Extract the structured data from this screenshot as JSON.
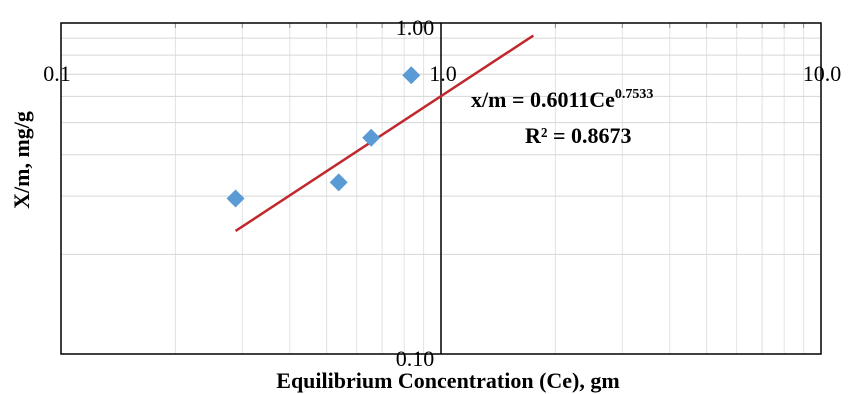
{
  "chart_data": {
    "type": "scatter",
    "xlabel": "Equilibrium Concentration (Ce), gm",
    "ylabel": "X/m, mg/g",
    "x_scale": "log",
    "y_scale": "log",
    "xlim": [
      0.1,
      10.0
    ],
    "ylim": [
      0.1,
      1.0
    ],
    "x_tick_labels": [
      "0.1",
      "1.0",
      "10.0"
    ],
    "y_tick_labels": [
      "0.10",
      "1.00"
    ],
    "grid": true,
    "series": [
      {
        "values": [
          {
            "x": 0.288,
            "y": 0.295
          },
          {
            "x": 0.538,
            "y": 0.33
          },
          {
            "x": 0.655,
            "y": 0.45
          },
          {
            "x": 0.835,
            "y": 0.695
          }
        ],
        "color": "#5b9bd5",
        "marker": "diamond"
      }
    ],
    "trendline": {
      "type": "power",
      "coefficient": 0.6011,
      "exponent": 0.7533,
      "x_range": [
        0.288,
        1.75
      ],
      "color": "#c0282d",
      "equation_base": "x/m = 0.6011Ce",
      "equation_exponent": "0.7533",
      "r_squared_label": "R² = 0.8673"
    }
  }
}
